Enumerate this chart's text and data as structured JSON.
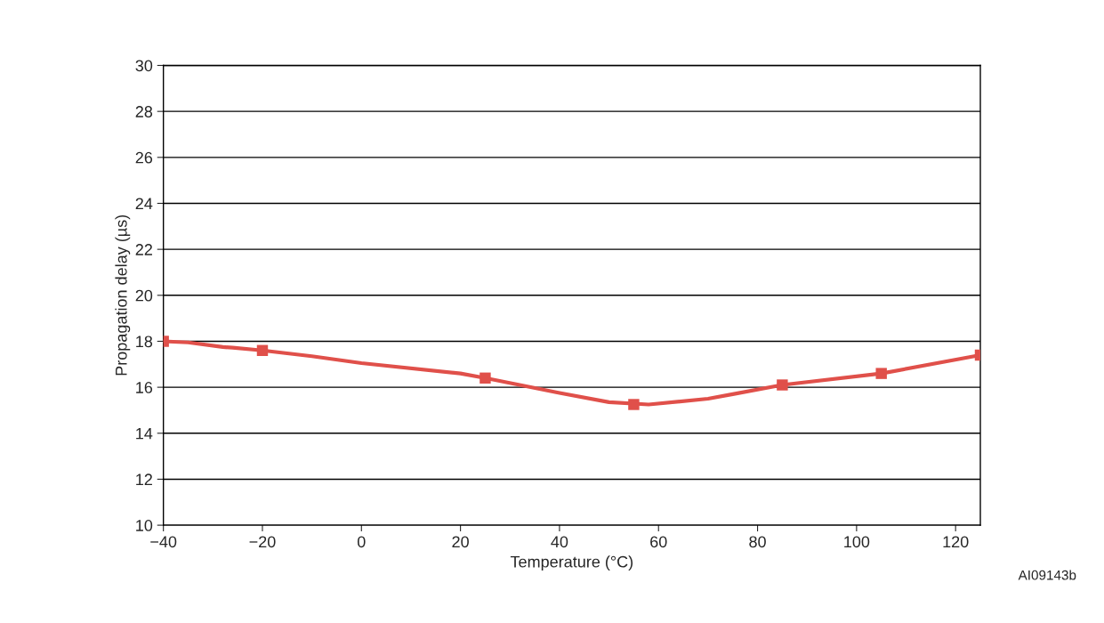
{
  "chart_data": {
    "type": "line",
    "xlabel": "Temperature (°C)",
    "ylabel": "Propagation delay (µs)",
    "annotations": [
      "AI09143b"
    ],
    "xlim": [
      -40,
      125
    ],
    "xticks": [
      -40,
      -20,
      0,
      20,
      40,
      60,
      80,
      100,
      120
    ],
    "ylim": [
      10,
      30
    ],
    "yticks": [
      10,
      12,
      14,
      16,
      18,
      20,
      22,
      24,
      26,
      28,
      30
    ],
    "grid": "y",
    "series": [
      {
        "color": "#e0504a",
        "marker": "none",
        "x": [
          -40,
          -35,
          -28,
          -26,
          -20,
          -10,
          0,
          20,
          25,
          40,
          50,
          58,
          70,
          75,
          85,
          105,
          125
        ],
        "values": [
          18.0,
          17.95,
          17.75,
          17.72,
          17.6,
          17.35,
          17.05,
          16.6,
          16.4,
          15.75,
          15.35,
          15.25,
          15.5,
          15.7,
          16.1,
          16.6,
          17.4
        ]
      },
      {
        "type": "scatter",
        "color": "#e0504a",
        "marker": "square",
        "x": [
          -40,
          -20,
          25,
          55,
          85,
          105,
          125
        ],
        "values": [
          18.0,
          17.6,
          16.4,
          15.25,
          16.1,
          16.6,
          17.4
        ]
      }
    ]
  }
}
